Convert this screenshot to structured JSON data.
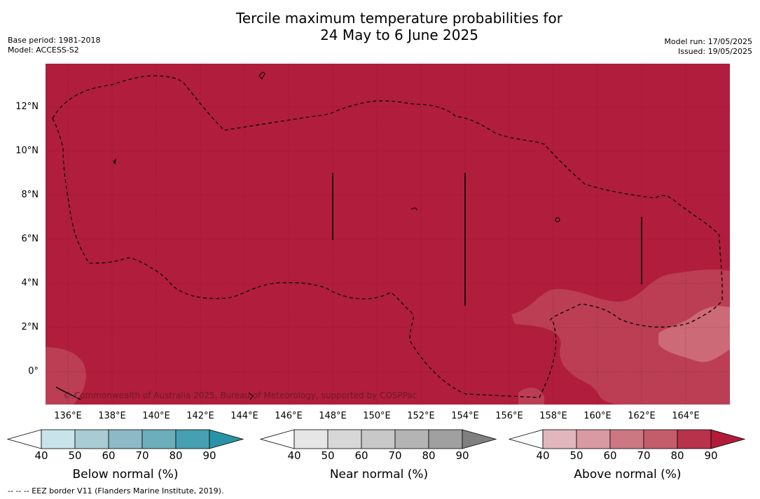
{
  "title_line1": "Tercile maximum temperature probabilities for",
  "title_line2": "24 May to 6 June 2025",
  "meta_left": {
    "base_period": "Base period: 1981-2018",
    "model": "Model: ACCESS-S2"
  },
  "meta_right": {
    "model_run": "Model run: 17/05/2025",
    "issued": "Issued: 19/05/2025"
  },
  "lat_ticks": [
    "12°N",
    "10°N",
    "8°N",
    "6°N",
    "4°N",
    "2°N",
    "0°"
  ],
  "lon_ticks": [
    "136°E",
    "138°E",
    "140°E",
    "142°E",
    "144°E",
    "146°E",
    "148°E",
    "150°E",
    "152°E",
    "154°E",
    "156°E",
    "158°E",
    "160°E",
    "162°E",
    "164°E"
  ],
  "copyright": "© Commonwealth of Australia 2025, Bureau of Meteorology, supported by COSPPac",
  "colorbars": [
    {
      "label": "Below normal (%)",
      "ticks": [
        "40",
        "50",
        "60",
        "70",
        "80",
        "90"
      ],
      "colors": [
        "#ffffff",
        "#c9e3ea",
        "#a9ccd4",
        "#8cb9c5",
        "#6daebc",
        "#46a0b2",
        "#2a93a8"
      ]
    },
    {
      "label": "Near normal (%)",
      "ticks": [
        "40",
        "50",
        "60",
        "70",
        "80",
        "90"
      ],
      "colors": [
        "#ffffff",
        "#e6e6e6",
        "#d7d7d7",
        "#c8c8c8",
        "#b4b4b4",
        "#a0a0a0",
        "#808080"
      ]
    },
    {
      "label": "Above normal (%)",
      "ticks": [
        "40",
        "50",
        "60",
        "70",
        "80",
        "90"
      ],
      "colors": [
        "#ffffff",
        "#e2b6bd",
        "#d99aa3",
        "#cc7882",
        "#c35d6c",
        "#b9324b",
        "#b21c3b"
      ]
    }
  ],
  "footer": "--  --  -- EEZ border V11 (Flanders Marine Institute, 2019).",
  "map_colors": {
    "dominant": "#b11d3c",
    "lighter": "#bb3e55",
    "lightest": "#cc6a78"
  }
}
